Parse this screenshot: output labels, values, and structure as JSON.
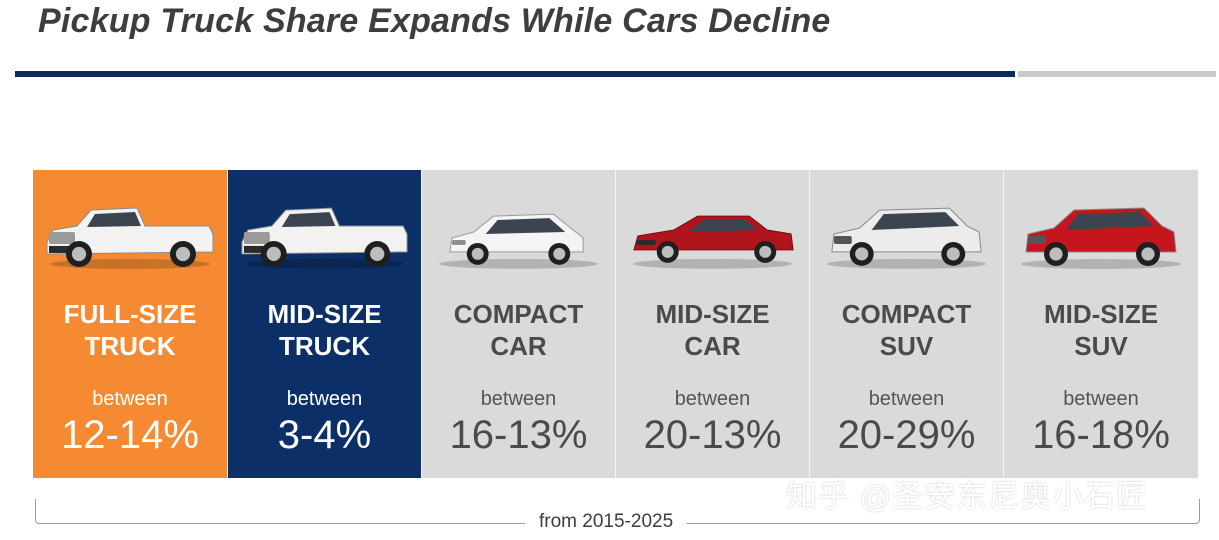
{
  "title": "Pickup Truck Share Expands While Cars Decline",
  "panels": [
    {
      "line1": "FULL-SIZE",
      "line2": "TRUCK",
      "between": "between",
      "range": "12-14%",
      "vehicle": "full-size-pickup-truck",
      "paint": "#f2f2f2",
      "bg": "#f58a33"
    },
    {
      "line1": "MID-SIZE",
      "line2": "TRUCK",
      "between": "between",
      "range": "3-4%",
      "vehicle": "mid-size-pickup-truck",
      "paint": "#f2f2f2",
      "bg": "#0b2f66"
    },
    {
      "line1": "COMPACT",
      "line2": "CAR",
      "between": "between",
      "range": "16-13%",
      "vehicle": "compact-hatchback-car",
      "paint": "#f4f4f4",
      "bg": "#dadada"
    },
    {
      "line1": "MID-SIZE",
      "line2": "CAR",
      "between": "between",
      "range": "20-13%",
      "vehicle": "mid-size-sedan-car",
      "paint": "#b0141c",
      "bg": "#dadada"
    },
    {
      "line1": "COMPACT",
      "line2": "SUV",
      "between": "between",
      "range": "20-29%",
      "vehicle": "compact-suv",
      "paint": "#ececec",
      "bg": "#dadada"
    },
    {
      "line1": "MID-SIZE",
      "line2": "SUV",
      "between": "between",
      "range": "16-18%",
      "vehicle": "mid-size-suv",
      "paint": "#c4161c",
      "bg": "#dadada"
    }
  ],
  "footnote": "from 2015-2025",
  "watermark": "知乎 @圣安东尼奥小石匠",
  "colors": {
    "title": "#3d3d3d",
    "rule": "#0b2a5c",
    "accent_orange": "#f58a33",
    "accent_navy": "#0b2f66",
    "panel_gray": "#dadada"
  }
}
